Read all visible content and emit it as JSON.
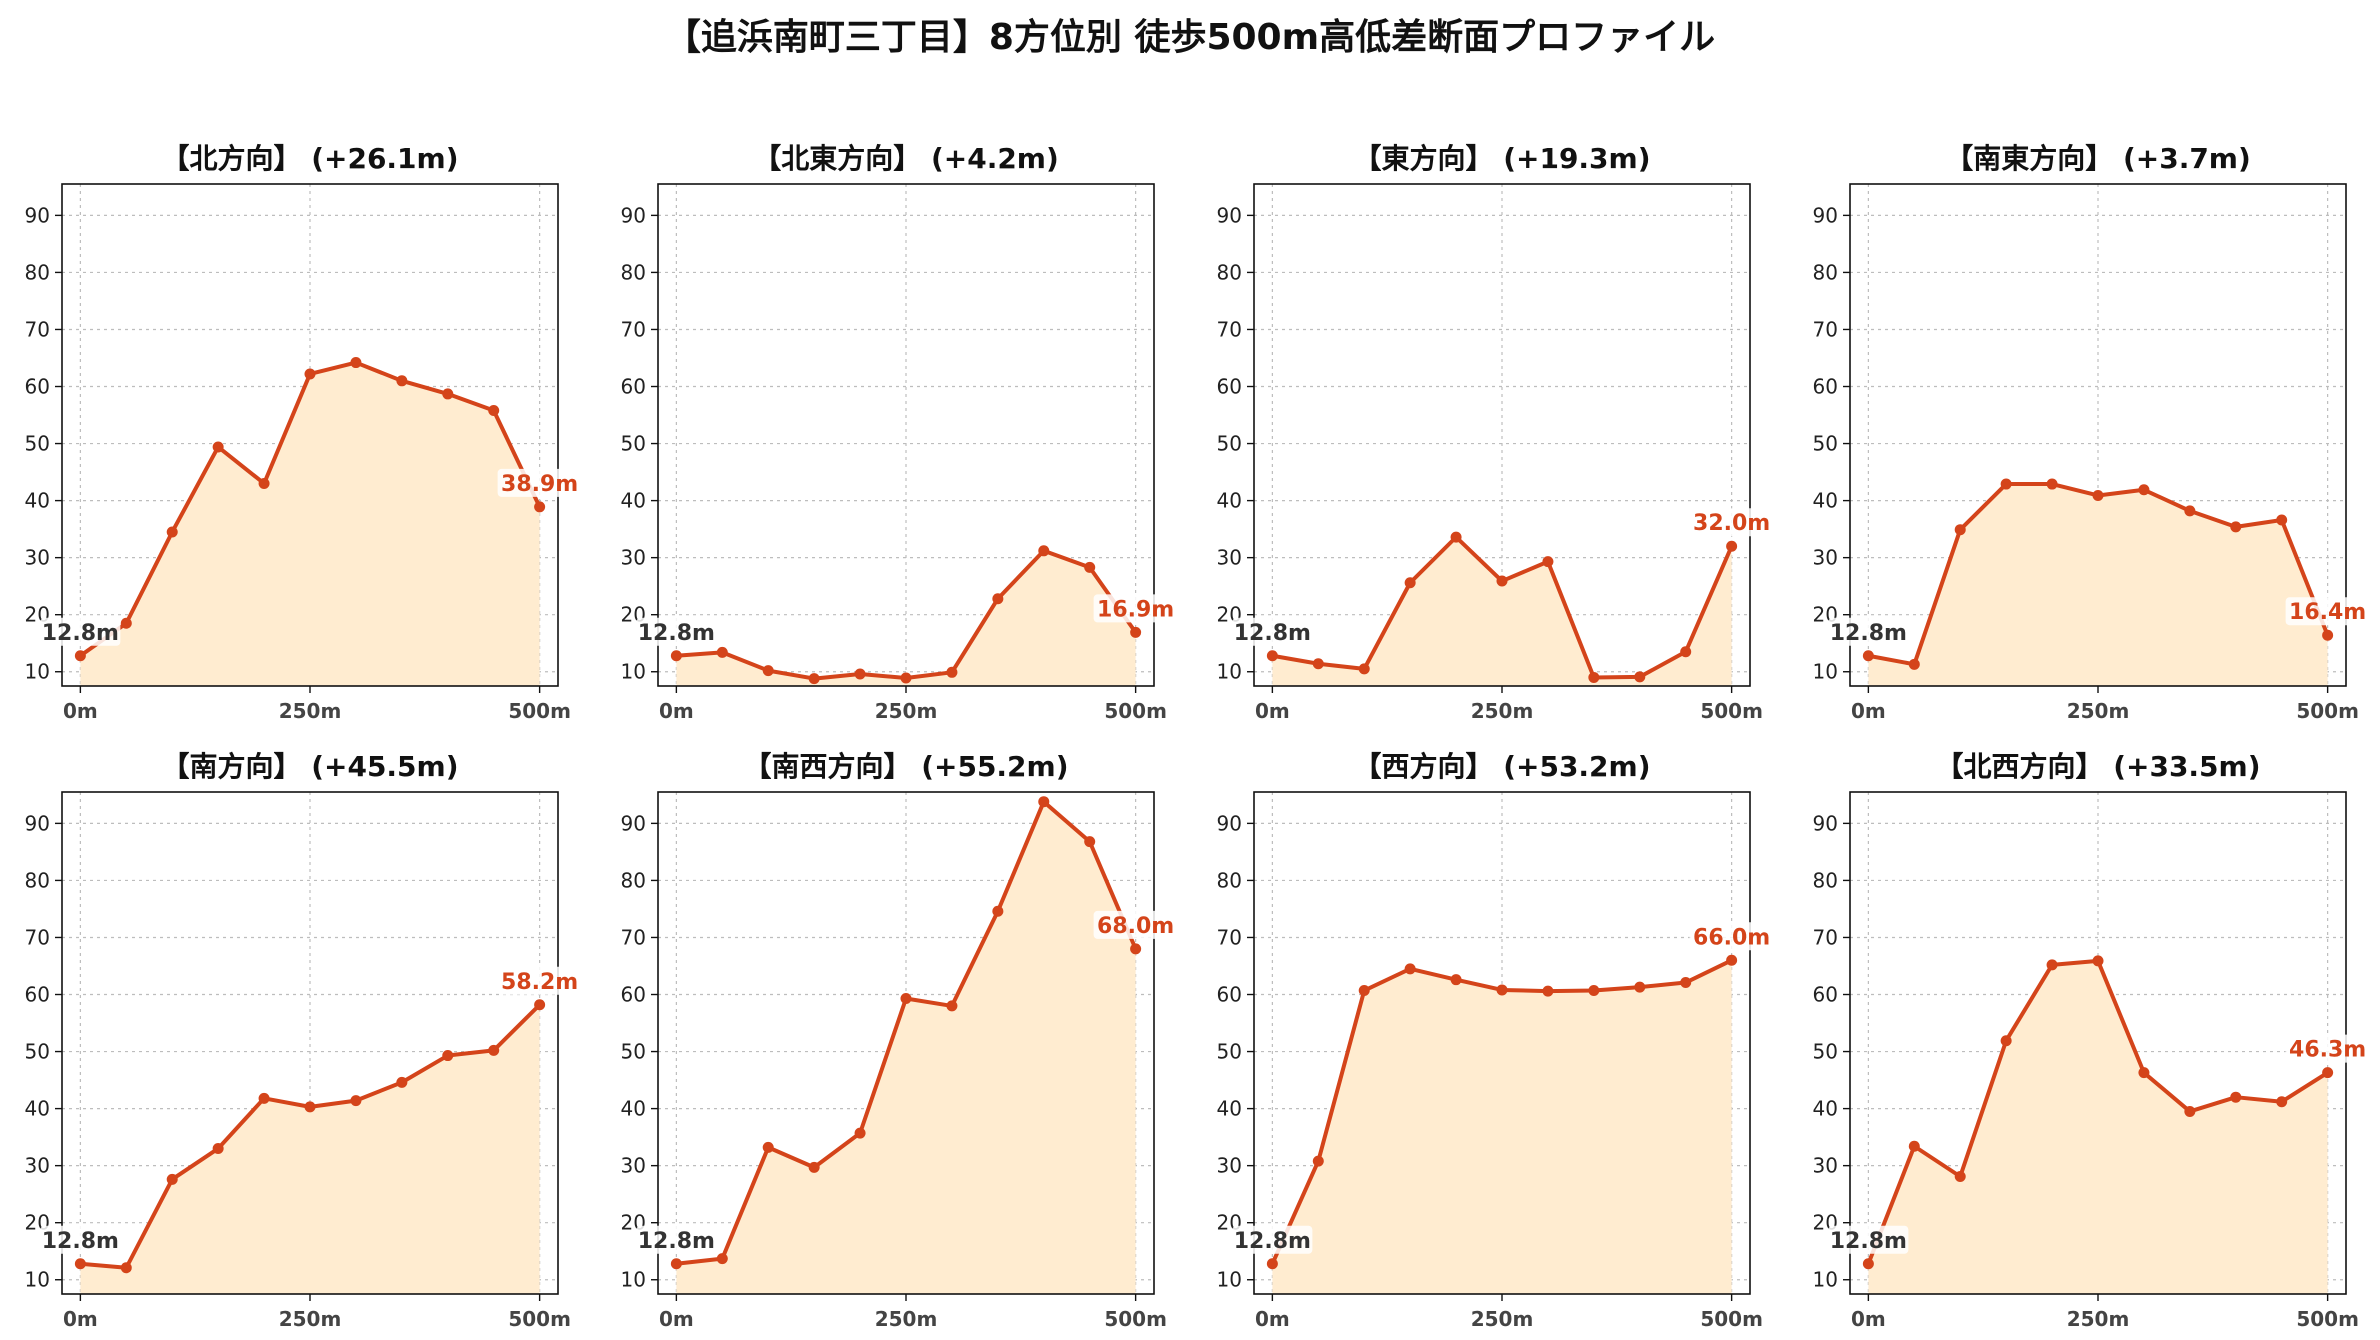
{
  "title": "【追浜南町三丁目】8方位別 徒歩500m高低差断面プロファイル",
  "colors": {
    "line": "#d4441a",
    "fill": "#ffecd0",
    "grid": "#bdbdbd"
  },
  "chart_data": [
    {
      "type": "area",
      "title": "【北方向】 (+26.1m)",
      "x": [
        0,
        50,
        100,
        150,
        200,
        250,
        300,
        350,
        400,
        450,
        500
      ],
      "values": [
        12.8,
        18.5,
        34.5,
        49.4,
        43.0,
        62.2,
        64.2,
        61.0,
        58.7,
        55.8,
        38.9
      ],
      "start_label": "12.8m",
      "end_label": "38.9m",
      "xticks": [
        0,
        250,
        500
      ],
      "xtick_labels": [
        "0m",
        "250m",
        "500m"
      ],
      "yticks": [
        10,
        20,
        30,
        40,
        50,
        60,
        70,
        80,
        90
      ],
      "xlim": [
        -20,
        520
      ],
      "ylim": [
        7.5,
        95.5
      ],
      "grid": true
    },
    {
      "type": "area",
      "title": "【北東方向】 (+4.2m)",
      "x": [
        0,
        50,
        100,
        150,
        200,
        250,
        300,
        350,
        400,
        450,
        500
      ],
      "values": [
        12.8,
        13.4,
        10.2,
        8.8,
        9.6,
        8.9,
        9.9,
        22.8,
        31.2,
        28.3,
        16.9
      ],
      "start_label": "12.8m",
      "end_label": "16.9m",
      "xticks": [
        0,
        250,
        500
      ],
      "xtick_labels": [
        "0m",
        "250m",
        "500m"
      ],
      "yticks": [
        10,
        20,
        30,
        40,
        50,
        60,
        70,
        80,
        90
      ],
      "xlim": [
        -20,
        520
      ],
      "ylim": [
        7.5,
        95.5
      ],
      "grid": true
    },
    {
      "type": "area",
      "title": "【東方向】 (+19.3m)",
      "x": [
        0,
        50,
        100,
        150,
        200,
        250,
        300,
        350,
        400,
        450,
        500
      ],
      "values": [
        12.8,
        11.4,
        10.5,
        25.6,
        33.6,
        25.9,
        29.3,
        9.0,
        9.1,
        13.5,
        32.0
      ],
      "start_label": "12.8m",
      "end_label": "32.0m",
      "xticks": [
        0,
        250,
        500
      ],
      "xtick_labels": [
        "0m",
        "250m",
        "500m"
      ],
      "yticks": [
        10,
        20,
        30,
        40,
        50,
        60,
        70,
        80,
        90
      ],
      "xlim": [
        -20,
        520
      ],
      "ylim": [
        7.5,
        95.5
      ],
      "grid": true
    },
    {
      "type": "area",
      "title": "【南東方向】 (+3.7m)",
      "x": [
        0,
        50,
        100,
        150,
        200,
        250,
        300,
        350,
        400,
        450,
        500
      ],
      "values": [
        12.8,
        11.3,
        34.9,
        42.9,
        42.9,
        40.9,
        41.9,
        38.2,
        35.4,
        36.6,
        16.4
      ],
      "start_label": "12.8m",
      "end_label": "16.4m",
      "xticks": [
        0,
        250,
        500
      ],
      "xtick_labels": [
        "0m",
        "250m",
        "500m"
      ],
      "yticks": [
        10,
        20,
        30,
        40,
        50,
        60,
        70,
        80,
        90
      ],
      "xlim": [
        -20,
        520
      ],
      "ylim": [
        7.5,
        95.5
      ],
      "grid": true
    },
    {
      "type": "area",
      "title": "【南方向】 (+45.5m)",
      "x": [
        0,
        50,
        100,
        150,
        200,
        250,
        300,
        350,
        400,
        450,
        500
      ],
      "values": [
        12.8,
        12.1,
        27.6,
        33.0,
        41.8,
        40.3,
        41.4,
        44.6,
        49.3,
        50.2,
        58.2
      ],
      "start_label": "12.8m",
      "end_label": "58.2m",
      "xticks": [
        0,
        250,
        500
      ],
      "xtick_labels": [
        "0m",
        "250m",
        "500m"
      ],
      "yticks": [
        10,
        20,
        30,
        40,
        50,
        60,
        70,
        80,
        90
      ],
      "xlim": [
        -20,
        520
      ],
      "ylim": [
        7.5,
        95.5
      ],
      "grid": true
    },
    {
      "type": "area",
      "title": "【南西方向】 (+55.2m)",
      "x": [
        0,
        50,
        100,
        150,
        200,
        250,
        300,
        350,
        400,
        450,
        500
      ],
      "values": [
        12.8,
        13.7,
        33.2,
        29.7,
        35.7,
        59.3,
        58.0,
        74.6,
        93.8,
        86.8,
        68.0
      ],
      "start_label": "12.8m",
      "end_label": "68.0m",
      "xticks": [
        0,
        250,
        500
      ],
      "xtick_labels": [
        "0m",
        "250m",
        "500m"
      ],
      "yticks": [
        10,
        20,
        30,
        40,
        50,
        60,
        70,
        80,
        90
      ],
      "xlim": [
        -20,
        520
      ],
      "ylim": [
        7.5,
        95.5
      ],
      "grid": true
    },
    {
      "type": "area",
      "title": "【西方向】 (+53.2m)",
      "x": [
        0,
        50,
        100,
        150,
        200,
        250,
        300,
        350,
        400,
        450,
        500
      ],
      "values": [
        12.8,
        30.8,
        60.7,
        64.5,
        62.6,
        60.8,
        60.6,
        60.7,
        61.3,
        62.1,
        66.0
      ],
      "start_label": "12.8m",
      "end_label": "66.0m",
      "xticks": [
        0,
        250,
        500
      ],
      "xtick_labels": [
        "0m",
        "250m",
        "500m"
      ],
      "yticks": [
        10,
        20,
        30,
        40,
        50,
        60,
        70,
        80,
        90
      ],
      "xlim": [
        -20,
        520
      ],
      "ylim": [
        7.5,
        95.5
      ],
      "grid": true
    },
    {
      "type": "area",
      "title": "【北西方向】 (+33.5m)",
      "x": [
        0,
        50,
        100,
        150,
        200,
        250,
        300,
        350,
        400,
        450,
        500
      ],
      "values": [
        12.8,
        33.4,
        28.1,
        51.9,
        65.2,
        65.9,
        46.3,
        39.5,
        42.0,
        41.2,
        46.3
      ],
      "start_label": "12.8m",
      "end_label": "46.3m",
      "xticks": [
        0,
        250,
        500
      ],
      "xtick_labels": [
        "0m",
        "250m",
        "500m"
      ],
      "yticks": [
        10,
        20,
        30,
        40,
        50,
        60,
        70,
        80,
        90
      ],
      "xlim": [
        -20,
        520
      ],
      "ylim": [
        7.5,
        95.5
      ],
      "grid": true
    }
  ]
}
